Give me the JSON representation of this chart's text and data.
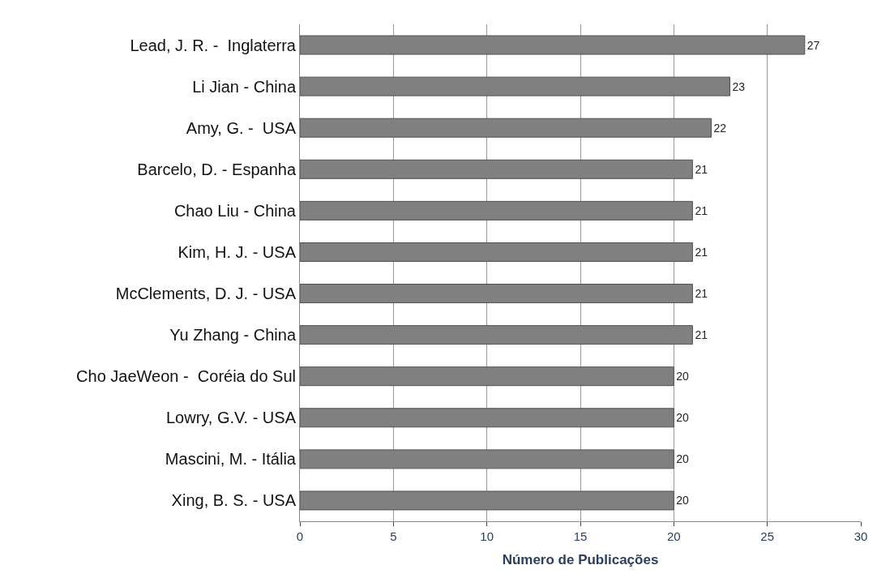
{
  "chart_data": {
    "type": "bar",
    "orientation": "horizontal",
    "categories": [
      "Lead, J. R. -  Inglaterra",
      "Li Jian - China",
      "Amy, G. -  USA",
      "Barcelo, D. - Espanha",
      "Chao Liu - China",
      "Kim, H. J. - USA",
      "McClements, D. J. - USA",
      "Yu Zhang - China",
      "Cho JaeWeon -  Coréia do Sul",
      "Lowry, G.V. - USA",
      "Mascini, M. - Itália",
      "Xing, B. S. - USA"
    ],
    "values": [
      27,
      23,
      22,
      21,
      21,
      21,
      21,
      21,
      20,
      20,
      20,
      20
    ],
    "color": "#808080",
    "xlabel": "Número de Publicações",
    "xlim": [
      0,
      30
    ],
    "xticks": [
      0,
      5,
      10,
      15,
      20,
      25,
      30
    ],
    "grid": "x",
    "data_labels": true
  }
}
